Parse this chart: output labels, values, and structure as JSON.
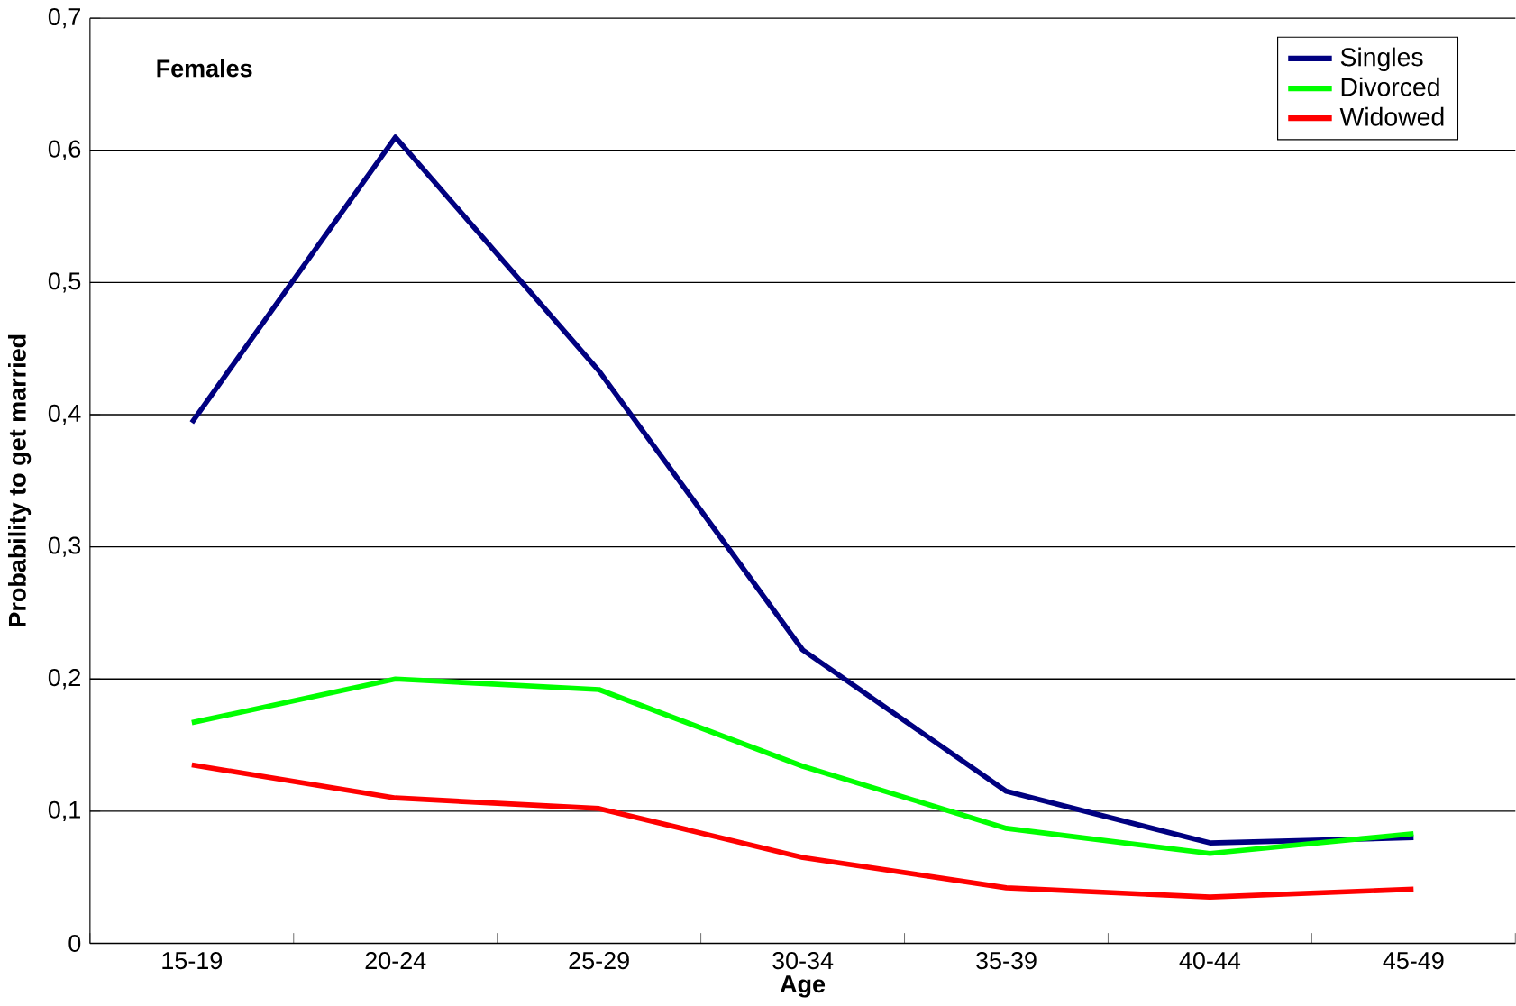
{
  "chart_data": {
    "type": "line",
    "xlabel": "Age",
    "ylabel": "Probability to get married",
    "annotations": [
      "Females"
    ],
    "categories": [
      "15-19",
      "20-24",
      "25-29",
      "30-34",
      "35-39",
      "40-44",
      "45-49"
    ],
    "series": [
      {
        "name": "Singles",
        "color": "#000080",
        "values": [
          0.394,
          0.61,
          0.433,
          0.222,
          0.115,
          0.076,
          0.08
        ]
      },
      {
        "name": "Divorced",
        "color": "#00ff00",
        "values": [
          0.167,
          0.2,
          0.192,
          0.134,
          0.087,
          0.068,
          0.083
        ]
      },
      {
        "name": "Widowed",
        "color": "#ff0000",
        "values": [
          0.135,
          0.11,
          0.102,
          0.065,
          0.042,
          0.035,
          0.041
        ]
      }
    ],
    "ylim": [
      0,
      0.7
    ],
    "yticks": [
      0,
      {
        "value": 0.1,
        "label": "0,1"
      },
      {
        "value": 0.2,
        "label": "0,2"
      },
      {
        "value": 0.3,
        "label": "0,3"
      },
      {
        "value": 0.4,
        "label": "0,4"
      },
      {
        "value": 0.5,
        "label": "0,5"
      },
      {
        "value": 0.6,
        "label": "0,6"
      },
      {
        "value": 0.7,
        "label": "0,7"
      }
    ],
    "grid": "y",
    "legend": "top right",
    "marker": "none",
    "line_style": "solid"
  }
}
